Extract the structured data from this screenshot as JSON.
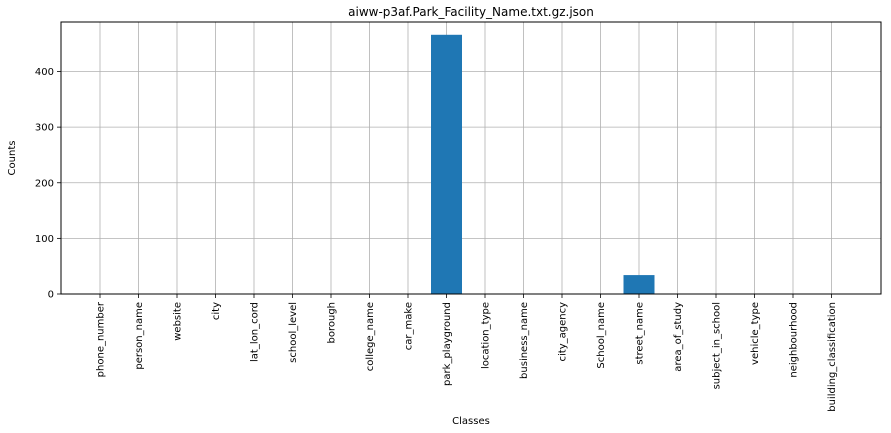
{
  "chart_data": {
    "type": "bar",
    "title": "aiww-p3af.Park_Facility_Name.txt.gz.json",
    "xlabel": "Classes",
    "ylabel": "Counts",
    "categories": [
      "phone_number",
      "person_name",
      "website",
      "city",
      "lat_lon_cord",
      "school_level",
      "borough",
      "college_name",
      "car_make",
      "park_playground",
      "location_type",
      "business_name",
      "city_agency",
      "School_name",
      "street_name",
      "area_of_study",
      "subject_in_school",
      "vehicle_type",
      "neighbourhood",
      "building_classification"
    ],
    "values": [
      0,
      0,
      0,
      0,
      0,
      0,
      0,
      0,
      0,
      466,
      0,
      0,
      0,
      0,
      34,
      0,
      0,
      0,
      0,
      0
    ],
    "yticks": [
      0,
      100,
      200,
      300,
      400
    ],
    "ylim": [
      0,
      489
    ],
    "grid": true,
    "bar_color": "#1f77b4"
  }
}
